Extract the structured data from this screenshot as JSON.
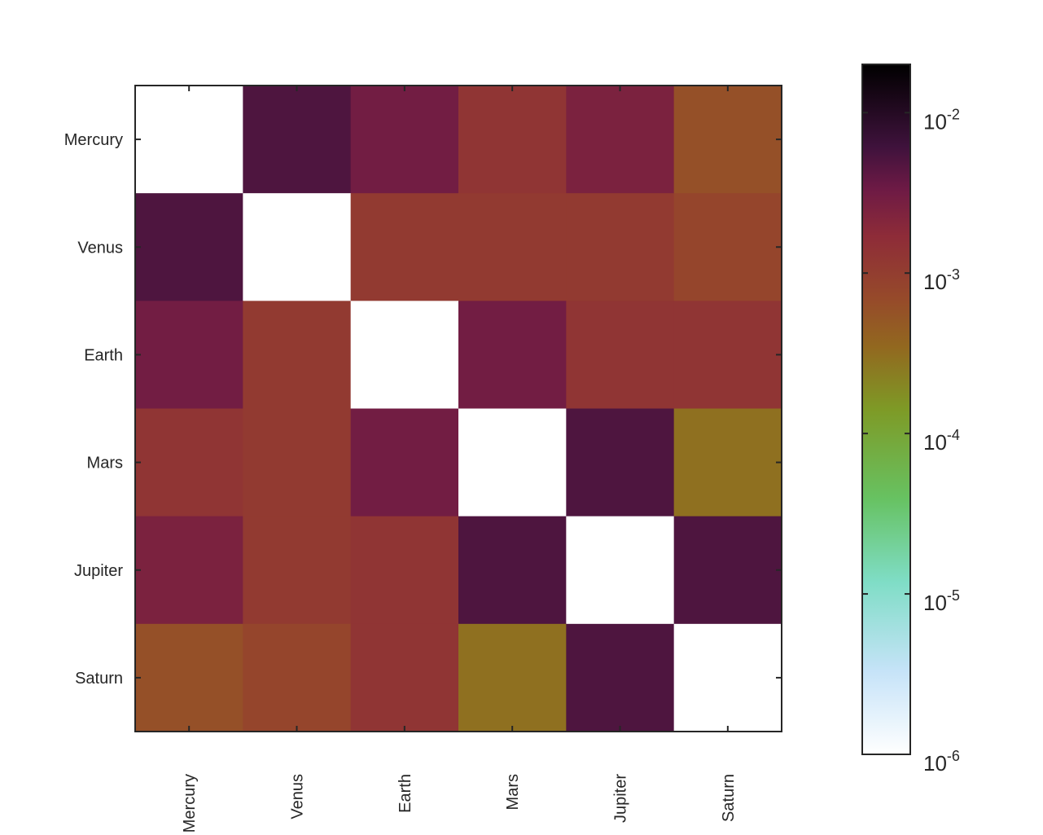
{
  "chart_data": {
    "type": "heatmap",
    "title": "",
    "xlabel": "",
    "ylabel": "",
    "x_categories": [
      "Mercury",
      "Venus",
      "Earth",
      "Mars",
      "Jupiter",
      "Saturn"
    ],
    "y_categories": [
      "Mercury",
      "Venus",
      "Earth",
      "Mars",
      "Jupiter",
      "Saturn"
    ],
    "values": [
      [
        null,
        0.005,
        0.003,
        0.0013,
        0.0025,
        0.0006
      ],
      [
        0.005,
        null,
        0.0011,
        0.0011,
        0.0011,
        0.0008
      ],
      [
        0.003,
        0.0011,
        null,
        0.003,
        0.0013,
        0.0013
      ],
      [
        0.0013,
        0.0011,
        0.003,
        null,
        0.005,
        0.0003
      ],
      [
        0.0025,
        0.0011,
        0.0013,
        0.005,
        null,
        0.005
      ],
      [
        0.0006,
        0.0008,
        0.0013,
        0.0003,
        0.005,
        null
      ]
    ],
    "colorbar": {
      "scale": "log",
      "range": [
        1e-06,
        0.02
      ],
      "ticks": [
        {
          "mantissa": "10",
          "exponent": "-2",
          "value": 0.01
        },
        {
          "mantissa": "10",
          "exponent": "-3",
          "value": 0.001
        },
        {
          "mantissa": "10",
          "exponent": "-4",
          "value": 0.0001
        },
        {
          "mantissa": "10",
          "exponent": "-5",
          "value": 1e-05
        },
        {
          "mantissa": "10",
          "exponent": "-6",
          "value": 1e-06
        }
      ],
      "colormap": [
        [
          0.0,
          "#ffffff"
        ],
        [
          0.12,
          "#c6e3f8"
        ],
        [
          0.25,
          "#7fddc6"
        ],
        [
          0.37,
          "#67c262"
        ],
        [
          0.5,
          "#7e9a26"
        ],
        [
          0.59,
          "#92681f"
        ],
        [
          0.66,
          "#964a2a"
        ],
        [
          0.75,
          "#8e2c38"
        ],
        [
          0.82,
          "#6d1a45"
        ],
        [
          0.88,
          "#3f123c"
        ],
        [
          1.0,
          "#000000"
        ]
      ]
    },
    "grid": false,
    "diagonal_color": "#ffffff"
  }
}
